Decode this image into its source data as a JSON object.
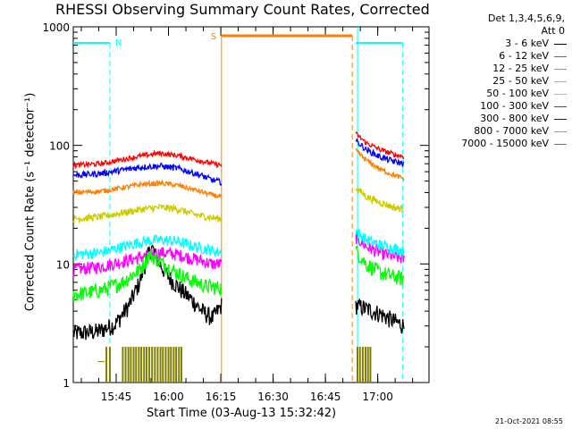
{
  "chart_data": {
    "type": "line",
    "title": "RHESSI Observing Summary Count Rates, Corrected",
    "xlabel": "Start Time (03-Aug-13 15:32:42)",
    "ylabel": "Corrected Count Rate (s⁻¹ detector⁻¹)",
    "yscale": "log",
    "ylim": [
      1,
      1000
    ],
    "xlim_minutes": [
      0,
      102
    ],
    "xticks": [
      {
        "t": 12.3,
        "label": "15:45"
      },
      {
        "t": 27.3,
        "label": "16:00"
      },
      {
        "t": 42.3,
        "label": "16:15"
      },
      {
        "t": 57.3,
        "label": "16:30"
      },
      {
        "t": 72.3,
        "label": "16:45"
      },
      {
        "t": 87.3,
        "label": "17:00"
      }
    ],
    "yticks": [
      {
        "v": 1,
        "label": "1"
      },
      {
        "v": 10,
        "label": "10"
      },
      {
        "v": 100,
        "label": "100"
      },
      {
        "v": 1000,
        "label": "1000"
      }
    ],
    "legend_header": [
      "Det 1,3,4,5,6,9,",
      "Att 0"
    ],
    "series": [
      {
        "name": "3 - 6 keV",
        "color": "#000000",
        "seg1": [
          [
            0,
            2.6
          ],
          [
            7,
            2.7
          ],
          [
            12,
            3.1
          ],
          [
            16,
            4.5
          ],
          [
            19,
            7
          ],
          [
            21,
            11
          ],
          [
            22.5,
            14
          ],
          [
            24,
            11
          ],
          [
            27,
            8
          ],
          [
            31,
            6
          ],
          [
            34,
            5
          ],
          [
            37,
            4
          ],
          [
            40,
            3.5
          ],
          [
            42.5,
            4.5
          ]
        ],
        "seg2": [
          [
            81,
            4.5
          ],
          [
            84,
            4.2
          ],
          [
            88,
            3.8
          ],
          [
            92,
            3.3
          ],
          [
            95,
            3
          ]
        ]
      },
      {
        "name": "6 - 12 keV",
        "color": "#ff00ff",
        "seg1": [
          [
            0,
            9
          ],
          [
            8,
            9.5
          ],
          [
            14,
            10.5
          ],
          [
            20,
            11.5
          ],
          [
            25,
            12.5
          ],
          [
            30,
            12
          ],
          [
            35,
            11
          ],
          [
            40,
            10
          ],
          [
            42.5,
            10
          ]
        ],
        "seg2": [
          [
            81,
            17
          ],
          [
            84,
            14
          ],
          [
            88,
            12.5
          ],
          [
            92,
            11.5
          ],
          [
            95,
            11
          ]
        ]
      },
      {
        "name": "12 - 25 keV",
        "color": "#00ff00",
        "seg1": [
          [
            0,
            5.5
          ],
          [
            8,
            6
          ],
          [
            14,
            7
          ],
          [
            19,
            9
          ],
          [
            22,
            12
          ],
          [
            24,
            11
          ],
          [
            28,
            9
          ],
          [
            33,
            7.5
          ],
          [
            38,
            6.5
          ],
          [
            42.5,
            6.3
          ]
        ],
        "seg2": [
          [
            81,
            13
          ],
          [
            84,
            10
          ],
          [
            88,
            8.5
          ],
          [
            92,
            7.8
          ],
          [
            95,
            7.5
          ]
        ]
      },
      {
        "name": "25 - 50 keV",
        "color": "#00ffff",
        "seg1": [
          [
            0,
            12
          ],
          [
            8,
            12.5
          ],
          [
            14,
            14
          ],
          [
            20,
            15.5
          ],
          [
            25,
            16
          ],
          [
            30,
            15.5
          ],
          [
            35,
            14
          ],
          [
            40,
            13
          ],
          [
            42.5,
            12.5
          ]
        ],
        "seg2": [
          [
            81,
            19
          ],
          [
            84,
            16
          ],
          [
            88,
            14.5
          ],
          [
            92,
            13.5
          ],
          [
            95,
            13
          ]
        ]
      },
      {
        "name": "50 - 100 keV",
        "color": "#cccc00",
        "seg1": [
          [
            0,
            24
          ],
          [
            8,
            25
          ],
          [
            14,
            27
          ],
          [
            20,
            29
          ],
          [
            25,
            30
          ],
          [
            30,
            29
          ],
          [
            35,
            26
          ],
          [
            40,
            24.5
          ],
          [
            42.5,
            24
          ]
        ],
        "seg2": [
          [
            81,
            44
          ],
          [
            84,
            37
          ],
          [
            88,
            33
          ],
          [
            92,
            30
          ],
          [
            95,
            29
          ]
        ]
      },
      {
        "name": "100 - 300 keV",
        "color": "#ff0000",
        "seg1": [
          [
            0,
            68
          ],
          [
            8,
            70
          ],
          [
            14,
            76
          ],
          [
            20,
            82
          ],
          [
            25,
            86
          ],
          [
            30,
            82
          ],
          [
            35,
            76
          ],
          [
            40,
            70
          ],
          [
            42.5,
            68
          ]
        ],
        "seg2": [
          [
            81,
            125
          ],
          [
            84,
            105
          ],
          [
            88,
            92
          ],
          [
            92,
            84
          ],
          [
            95,
            80
          ]
        ]
      },
      {
        "name": "300 - 800 keV",
        "color": "#0000ff",
        "seg1": [
          [
            0,
            56
          ],
          [
            8,
            58
          ],
          [
            14,
            62
          ],
          [
            20,
            66
          ],
          [
            25,
            67
          ],
          [
            30,
            64
          ],
          [
            35,
            58
          ],
          [
            40,
            51
          ],
          [
            42.5,
            49
          ]
        ],
        "seg2": [
          [
            81,
            110
          ],
          [
            84,
            92
          ],
          [
            88,
            80
          ],
          [
            92,
            73
          ],
          [
            95,
            70
          ]
        ]
      },
      {
        "name": "800 - 7000 keV",
        "color": "#ff8000",
        "seg1": [
          [
            0,
            40
          ],
          [
            8,
            41
          ],
          [
            14,
            44
          ],
          [
            20,
            47
          ],
          [
            25,
            48
          ],
          [
            30,
            46
          ],
          [
            35,
            42
          ],
          [
            40,
            38
          ],
          [
            42.5,
            37
          ]
        ],
        "seg2": [
          [
            81,
            90
          ],
          [
            84,
            75
          ],
          [
            88,
            63
          ],
          [
            92,
            56
          ],
          [
            95,
            52
          ]
        ]
      },
      {
        "name": "7000 - 15000 keV",
        "color": "#808000",
        "seg1": [],
        "seg2": []
      }
    ],
    "olive_blocks": [
      [
        9.5,
        2
      ],
      [
        10.5,
        2
      ],
      [
        14.2,
        2
      ],
      [
        15,
        2
      ],
      [
        15.8,
        2
      ],
      [
        16.5,
        2
      ],
      [
        17.3,
        2
      ],
      [
        18,
        2
      ],
      [
        18.8,
        2
      ],
      [
        19.5,
        2
      ],
      [
        20.3,
        2
      ],
      [
        21,
        2
      ],
      [
        21.8,
        2
      ],
      [
        22.6,
        2
      ],
      [
        23.4,
        2
      ],
      [
        24.2,
        2
      ],
      [
        25,
        2
      ],
      [
        25.7,
        2
      ],
      [
        26.5,
        2
      ],
      [
        27.3,
        2
      ],
      [
        28,
        2
      ],
      [
        28.8,
        2
      ],
      [
        29.5,
        2
      ],
      [
        30.3,
        2
      ],
      [
        31,
        2
      ],
      [
        81.5,
        2
      ],
      [
        82.2,
        2
      ],
      [
        83,
        2
      ],
      [
        83.8,
        2
      ],
      [
        84.5,
        2
      ],
      [
        85.2,
        2
      ]
    ],
    "annotations": [
      {
        "label": "N",
        "color": "#00ffff"
      },
      {
        "label": "S",
        "color": "#ff8000"
      }
    ],
    "night_bars": [
      [
        0,
        10.5
      ],
      [
        81,
        94.5
      ]
    ],
    "saa_bar": [
      42.5,
      80
    ],
    "night_markers": [
      10.5,
      94.5,
      81
    ],
    "saa_markers": [
      42.5,
      80
    ]
  },
  "timestamp": "21-Oct-2021 08:55"
}
